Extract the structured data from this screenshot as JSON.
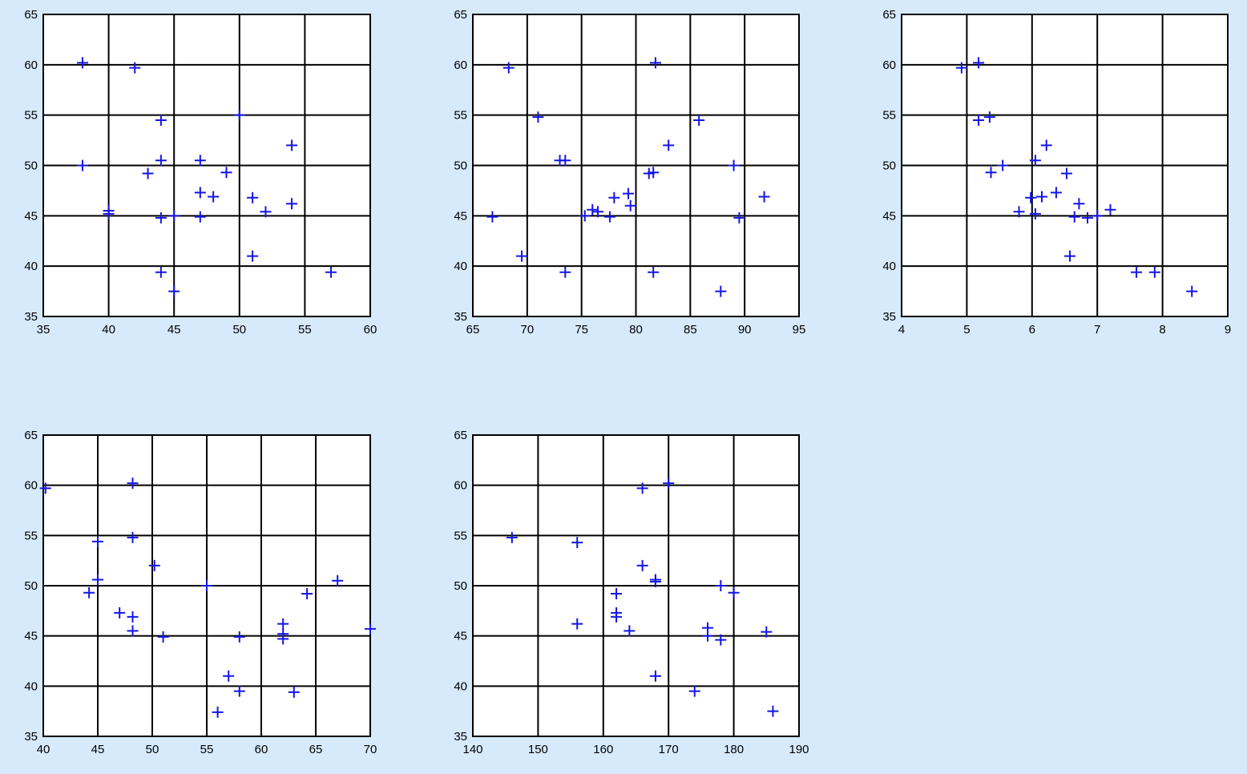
{
  "background": "#d6eafc",
  "marker_color": "#1515e6",
  "chart_data": [
    {
      "type": "scatter",
      "marker": "+",
      "xlim": [
        35,
        60
      ],
      "ylim": [
        35,
        65
      ],
      "xticks": [
        35,
        40,
        45,
        50,
        55,
        60
      ],
      "yticks": [
        35,
        40,
        45,
        50,
        55,
        60,
        65
      ],
      "grid": true,
      "points": [
        [
          38,
          60.2
        ],
        [
          42,
          59.7
        ],
        [
          44,
          54.5
        ],
        [
          50,
          55
        ],
        [
          38,
          50
        ],
        [
          44,
          50.5
        ],
        [
          43,
          49.2
        ],
        [
          47,
          50.5
        ],
        [
          49,
          49.3
        ],
        [
          54,
          52
        ],
        [
          40,
          45.5
        ],
        [
          40,
          45.2
        ],
        [
          44,
          44.8
        ],
        [
          45,
          45
        ],
        [
          47,
          47.3
        ],
        [
          48,
          46.9
        ],
        [
          47,
          44.9
        ],
        [
          51,
          46.8
        ],
        [
          52,
          45.4
        ],
        [
          54,
          46.2
        ],
        [
          51,
          41
        ],
        [
          44,
          39.4
        ],
        [
          45,
          37.5
        ],
        [
          57,
          39.4
        ]
      ]
    },
    {
      "type": "scatter",
      "marker": "+",
      "xlim": [
        65,
        95
      ],
      "ylim": [
        35,
        65
      ],
      "xticks": [
        65,
        70,
        75,
        80,
        85,
        90,
        95
      ],
      "yticks": [
        35,
        40,
        45,
        50,
        55,
        60,
        65
      ],
      "grid": true,
      "points": [
        [
          68.3,
          59.7
        ],
        [
          81.8,
          60.2
        ],
        [
          71,
          54.8
        ],
        [
          85.8,
          54.5
        ],
        [
          73,
          50.5
        ],
        [
          73.5,
          50.5
        ],
        [
          83,
          52
        ],
        [
          89,
          50
        ],
        [
          81.2,
          49.2
        ],
        [
          81.6,
          49.3
        ],
        [
          79.3,
          47.2
        ],
        [
          79.5,
          46
        ],
        [
          78,
          46.8
        ],
        [
          91.8,
          46.9
        ],
        [
          66.8,
          44.9
        ],
        [
          75.3,
          45
        ],
        [
          76,
          45.6
        ],
        [
          76.5,
          45.4
        ],
        [
          77.6,
          44.9
        ],
        [
          89.5,
          44.8
        ],
        [
          69.5,
          41
        ],
        [
          73.5,
          39.4
        ],
        [
          81.6,
          39.4
        ],
        [
          87.8,
          37.5
        ]
      ]
    },
    {
      "type": "scatter",
      "marker": "+",
      "xlim": [
        4,
        9
      ],
      "ylim": [
        35,
        65
      ],
      "xticks": [
        4,
        5,
        6,
        7,
        8,
        9
      ],
      "yticks": [
        35,
        40,
        45,
        50,
        55,
        60,
        65
      ],
      "grid": true,
      "points": [
        [
          4.92,
          59.7
        ],
        [
          5.18,
          60.2
        ],
        [
          5.18,
          54.5
        ],
        [
          5.35,
          54.8
        ],
        [
          5.55,
          50
        ],
        [
          5.37,
          49.3
        ],
        [
          6.05,
          50.5
        ],
        [
          6.22,
          52
        ],
        [
          6.53,
          49.2
        ],
        [
          5.98,
          46.8
        ],
        [
          6.15,
          46.9
        ],
        [
          6.37,
          47.3
        ],
        [
          5.8,
          45.4
        ],
        [
          6.05,
          45.2
        ],
        [
          6.72,
          46.2
        ],
        [
          6.65,
          44.9
        ],
        [
          6.85,
          44.8
        ],
        [
          7.0,
          45
        ],
        [
          7.2,
          45.6
        ],
        [
          6.58,
          41
        ],
        [
          7.6,
          39.4
        ],
        [
          7.88,
          39.4
        ],
        [
          8.45,
          37.5
        ]
      ]
    },
    {
      "type": "scatter",
      "marker": "+",
      "xlim": [
        40,
        70
      ],
      "ylim": [
        35,
        65
      ],
      "xticks": [
        40,
        45,
        50,
        55,
        60,
        65,
        70
      ],
      "yticks": [
        35,
        40,
        45,
        50,
        55,
        60,
        65
      ],
      "grid": true,
      "points": [
        [
          40.2,
          59.7
        ],
        [
          48.2,
          60.2
        ],
        [
          45,
          54.4
        ],
        [
          48.2,
          54.8
        ],
        [
          45,
          50.6
        ],
        [
          50.2,
          52
        ],
        [
          44.2,
          49.3
        ],
        [
          55,
          50
        ],
        [
          64.2,
          49.2
        ],
        [
          67,
          50.5
        ],
        [
          47,
          47.3
        ],
        [
          48.2,
          46.9
        ],
        [
          48.2,
          45.5
        ],
        [
          51,
          44.9
        ],
        [
          58,
          44.9
        ],
        [
          62,
          46.2
        ],
        [
          62,
          45.2
        ],
        [
          62,
          44.7
        ],
        [
          70,
          45.7
        ],
        [
          57,
          41
        ],
        [
          58,
          39.5
        ],
        [
          63,
          39.4
        ],
        [
          56,
          37.4
        ]
      ]
    },
    {
      "type": "scatter",
      "marker": "+",
      "xlim": [
        140,
        190
      ],
      "ylim": [
        35,
        65
      ],
      "xticks": [
        140,
        150,
        160,
        170,
        180,
        190
      ],
      "yticks": [
        35,
        40,
        45,
        50,
        55,
        60,
        65
      ],
      "grid": true,
      "points": [
        [
          146,
          54.8
        ],
        [
          166,
          59.7
        ],
        [
          170,
          60.2
        ],
        [
          156,
          54.3
        ],
        [
          166,
          52
        ],
        [
          168,
          50.6
        ],
        [
          168,
          50.4
        ],
        [
          178,
          50
        ],
        [
          180,
          49.3
        ],
        [
          162,
          49.2
        ],
        [
          162,
          47.3
        ],
        [
          162,
          46.9
        ],
        [
          156,
          46.2
        ],
        [
          164,
          45.5
        ],
        [
          176,
          45.8
        ],
        [
          176,
          45
        ],
        [
          178,
          44.6
        ],
        [
          185,
          45.4
        ],
        [
          168,
          41
        ],
        [
          174,
          39.5
        ],
        [
          186,
          37.5
        ]
      ]
    }
  ]
}
